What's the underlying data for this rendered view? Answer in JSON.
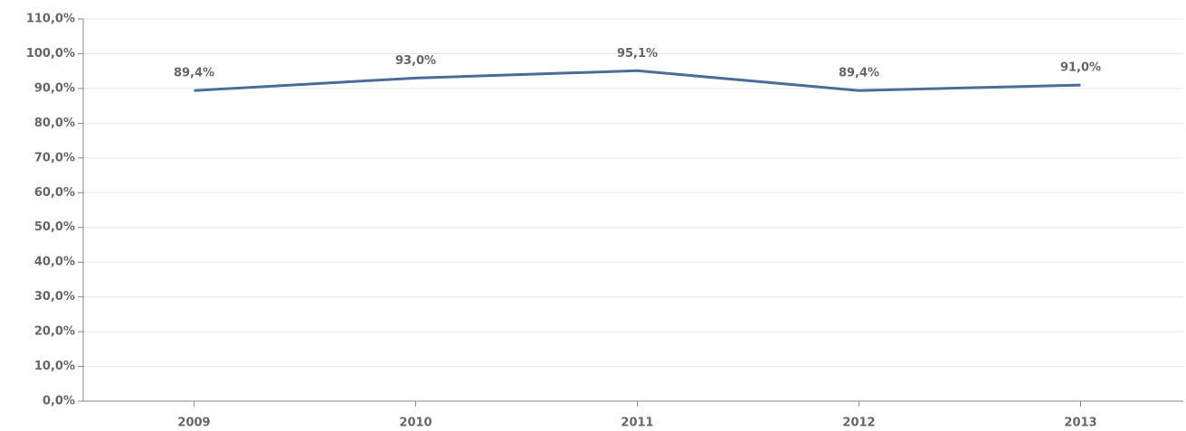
{
  "chart_data": {
    "type": "line",
    "categories": [
      "2009",
      "2010",
      "2011",
      "2012",
      "2013"
    ],
    "series": [
      {
        "color": "#4a6d9a",
        "values": [
          89.4,
          93.0,
          95.1,
          89.4,
          91.0
        ],
        "value_labels": [
          "89,4%",
          "93,0%",
          "95,1%",
          "89,4%",
          "91,0%"
        ]
      }
    ],
    "ylim": [
      0,
      110
    ],
    "yticks": [
      {
        "value": 0,
        "label": "0,0%"
      },
      {
        "value": 10,
        "label": "10,0%"
      },
      {
        "value": 20,
        "label": "20,0%"
      },
      {
        "value": 30,
        "label": "30,0%"
      },
      {
        "value": 40,
        "label": "40,0%"
      },
      {
        "value": 50,
        "label": "50,0%"
      },
      {
        "value": 60,
        "label": "60,0%"
      },
      {
        "value": 70,
        "label": "70,0%"
      },
      {
        "value": 80,
        "label": "80,0%"
      },
      {
        "value": 90,
        "label": "90,0%"
      },
      {
        "value": 100,
        "label": "100,0%"
      },
      {
        "value": 110,
        "label": "110,0%"
      }
    ],
    "grid": true
  }
}
